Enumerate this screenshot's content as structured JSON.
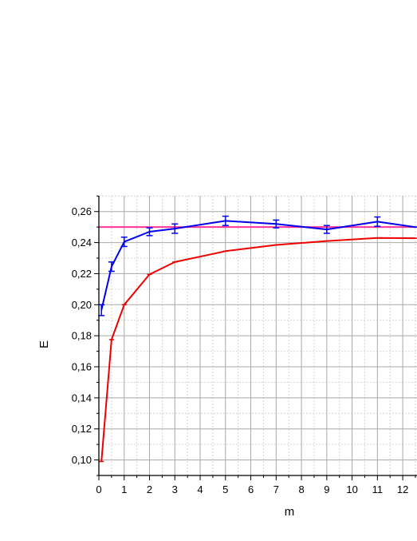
{
  "chart_data": {
    "type": "line",
    "title": "",
    "xlabel": "m",
    "ylabel": "E",
    "xlim": [
      0,
      12.5
    ],
    "ylim": [
      0.09,
      0.27
    ],
    "grid": true,
    "decimal_separator": ",",
    "x_ticks": [
      0,
      1,
      2,
      3,
      4,
      5,
      6,
      7,
      8,
      9,
      10,
      11,
      12
    ],
    "y_ticks": [
      0.1,
      0.12,
      0.14,
      0.16,
      0.18,
      0.2,
      0.22,
      0.24,
      0.26
    ],
    "x_tick_labels": [
      "0",
      "1",
      "2",
      "3",
      "4",
      "5",
      "6",
      "7",
      "8",
      "9",
      "10",
      "11",
      "12"
    ],
    "y_tick_labels": [
      "0,10",
      "0,12",
      "0,14",
      "0,16",
      "0,18",
      "0,20",
      "0,22",
      "0,24",
      "0,26"
    ],
    "reference_line": {
      "y": 0.25,
      "color": "#ff3399"
    },
    "series": [
      {
        "color": "#0000ee",
        "x": [
          0.1,
          0.5,
          1,
          2,
          3,
          5,
          7,
          9,
          11,
          12.5
        ],
        "y": [
          0.1965,
          0.2245,
          0.2405,
          0.247,
          0.249,
          0.254,
          0.252,
          0.2485,
          0.2535,
          0.25
        ],
        "err": [
          0.0035,
          0.003,
          0.003,
          0.0025,
          0.003,
          0.003,
          0.0025,
          0.0025,
          0.003,
          0.0
        ]
      },
      {
        "color": "#ee0000",
        "x": [
          0.1,
          0.5,
          1,
          2,
          3,
          5,
          7,
          9,
          11,
          12.5
        ],
        "y": [
          0.099,
          0.1775,
          0.2,
          0.2195,
          0.2275,
          0.2345,
          0.2385,
          0.241,
          0.243,
          0.2428
        ],
        "err": [
          0,
          0,
          0,
          0,
          0,
          0,
          0,
          0,
          0,
          0
        ]
      }
    ]
  }
}
